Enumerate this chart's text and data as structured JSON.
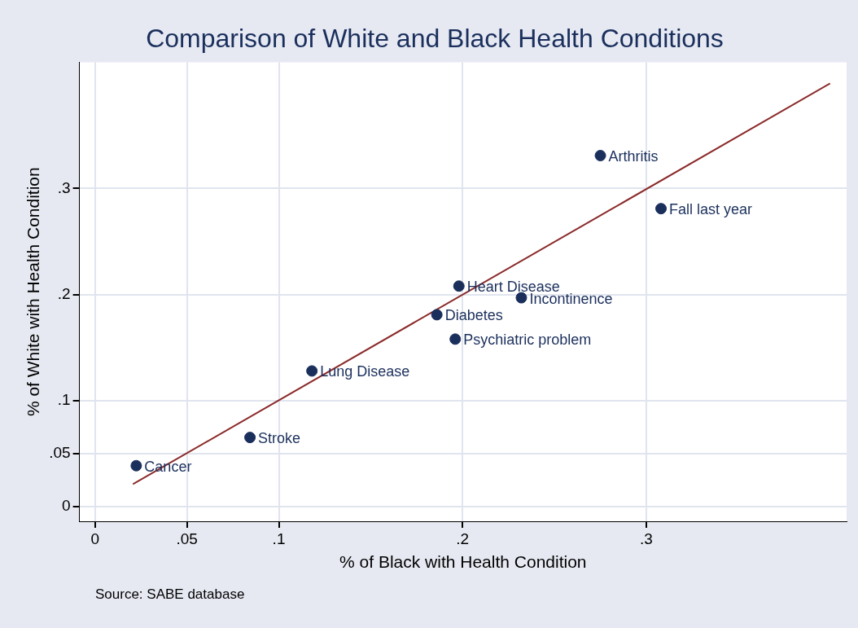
{
  "chart_data": {
    "type": "scatter",
    "title": "Comparison of White and Black Health Conditions",
    "xlabel": "% of Black with Health Condition",
    "ylabel": "% of White with Health Condition",
    "series": [
      {
        "color": "#1a2f5c",
        "x": [
          0.0224,
          0.0843,
          0.118,
          0.186,
          0.198,
          0.196,
          0.232,
          0.275,
          0.308
        ],
        "values": [
          0.0387,
          0.0653,
          0.128,
          0.181,
          0.208,
          0.158,
          0.197,
          0.331,
          0.281
        ]
      },
      {
        "type": "line",
        "marker": "none",
        "color": "#8b2a2a",
        "x": [
          0.0206,
          0.4
        ],
        "values": [
          0.0213,
          0.399
        ]
      }
    ],
    "xlim": [
      -0.0085,
      0.409
    ],
    "ylim": [
      -0.0137,
      0.419
    ],
    "xticks": [
      0,
      {
        "value": 0.05,
        "label": ".05"
      },
      {
        "value": 0.1,
        "label": ".1"
      },
      {
        "value": 0.2,
        "label": ".2"
      },
      {
        "value": 0.3,
        "label": ".3"
      }
    ],
    "yticks": [
      0,
      {
        "value": 0.05,
        "label": ".05"
      },
      {
        "value": 0.1,
        "label": ".1"
      },
      {
        "value": 0.2,
        "label": ".2"
      },
      {
        "value": 0.3,
        "label": ".3"
      }
    ],
    "grid": true,
    "marker": "circle",
    "legend": false,
    "annotations": [
      {
        "text": "Cancer",
        "x": 0.0224,
        "y": 0.0387
      },
      {
        "text": "Stroke",
        "x": 0.0843,
        "y": 0.0653
      },
      {
        "text": "Lung Disease",
        "x": 0.118,
        "y": 0.128
      },
      {
        "text": "Diabetes",
        "x": 0.186,
        "y": 0.181
      },
      {
        "text": "Heart Disease",
        "x": 0.198,
        "y": 0.208
      },
      {
        "text": "Psychiatric problem",
        "x": 0.196,
        "y": 0.158
      },
      {
        "text": "Incontinence",
        "x": 0.232,
        "y": 0.197
      },
      {
        "text": "Arthritis",
        "x": 0.275,
        "y": 0.331
      },
      {
        "text": "Fall last year",
        "x": 0.308,
        "y": 0.281
      },
      "Source: SABE database"
    ]
  }
}
